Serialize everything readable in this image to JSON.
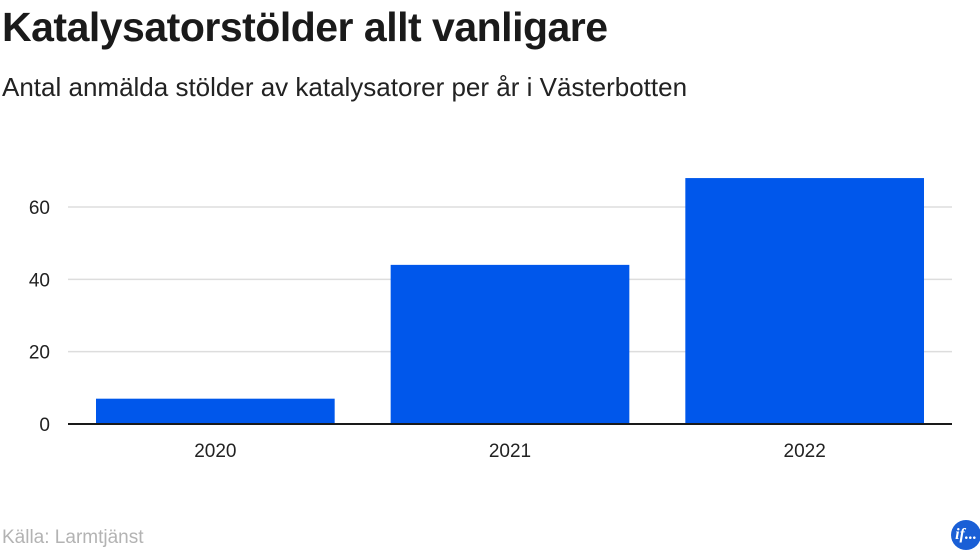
{
  "header": {
    "title": "Katalysatorstölder allt vanligare",
    "subtitle": "Antal anmälda stölder av katalysatorer per år i Västerbotten"
  },
  "footer": {
    "source": "Källa: Larmtjänst",
    "logo_text": "if..."
  },
  "colors": {
    "bar": "#0057eb",
    "grid": "#dddddd",
    "axis": "#1a1a1a"
  },
  "chart_data": {
    "type": "bar",
    "title": "Katalysatorstölder allt vanligare",
    "subtitle": "Antal anmälda stölder av katalysatorer per år i Västerbotten",
    "categories": [
      "2020",
      "2021",
      "2022"
    ],
    "values": [
      7,
      44,
      68
    ],
    "xlabel": "",
    "ylabel": "",
    "ylim": [
      0,
      70
    ],
    "yticks": [
      0,
      20,
      40,
      60
    ],
    "grid": true,
    "legend": "none"
  }
}
